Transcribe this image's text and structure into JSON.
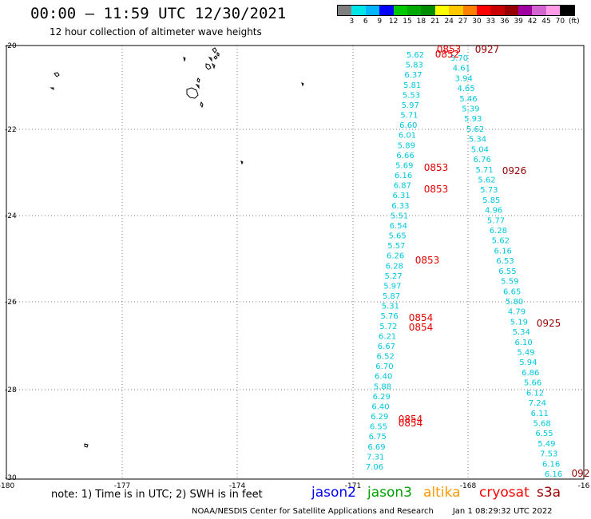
{
  "title": "00:00 – 11:59 UTC 12/30/2021",
  "subtitle": "12 hour collection of altimeter wave heights",
  "colorbar": {
    "labels": [
      "3",
      "6",
      "9",
      "12",
      "15",
      "18",
      "21",
      "24",
      "27",
      "30",
      "33",
      "36",
      "39",
      "42",
      "45",
      "70"
    ],
    "unit": "(ft)",
    "colors": [
      "#7f7f7f",
      "#00e6e6",
      "#00b4ff",
      "#0000ff",
      "#00c800",
      "#00aa00",
      "#008c00",
      "#ffff00",
      "#ffc800",
      "#ff7f00",
      "#ff0000",
      "#c80000",
      "#960000",
      "#a000a0",
      "#d264d2",
      "#ff9be6",
      "#000000"
    ]
  },
  "map": {
    "lon_range": [
      -180,
      -161
    ],
    "lat_range": [
      -30,
      -20
    ],
    "x_ticks": [
      "-180",
      "-177",
      "-174",
      "-171",
      "-168",
      "-16"
    ],
    "y_ticks": [
      "-20",
      "-22",
      "-24",
      "-26",
      "-28",
      "-30"
    ]
  },
  "colors": {
    "wave": "#00c8dc",
    "time": "#e60000",
    "time_old": "#960000"
  },
  "tracks": {
    "track_a": [
      "5.62",
      "5.83",
      "6.37",
      "5.81",
      "5.53",
      "5.97",
      "5.71",
      "6.60",
      "6.01",
      "5.89",
      "6.66",
      "5.69",
      "6.16",
      "6.87",
      "6.31",
      "6.33",
      "5.51",
      "6.54",
      "5.65",
      "5.57",
      "6.26",
      "6.28",
      "5.27",
      "5.97",
      "5.87",
      "5.31",
      "5.76",
      "5.72",
      "6.21",
      "6.67",
      "6.52",
      "6.70",
      "6.40",
      "5.88",
      "6.29",
      "6.40",
      "6.29",
      "6.55",
      "6.75",
      "6.69",
      "7.31",
      "7.06"
    ],
    "track_b": [
      "5.70",
      "4.61",
      "3.94",
      "4.65",
      "5.46",
      "5.39",
      "5.93",
      "5.62",
      "5.34",
      "5.04",
      "6.76",
      "5.71",
      "5.62",
      "5.73",
      "5.85",
      "4.96",
      "5.77",
      "6.28",
      "5.62",
      "6.16",
      "6.53",
      "6.55",
      "5.59",
      "6.65",
      "5.80",
      "4.79",
      "5.19",
      "5.34",
      "6.10",
      "5.49",
      "5.94",
      "6.86",
      "5.66",
      "6.12",
      "7.24",
      "6.11",
      "5.68",
      "6.55",
      "5.49",
      "7.53",
      "6.16",
      "6.16"
    ],
    "times_a": [
      "0853",
      "0852",
      "0853",
      "0853",
      "0853",
      "0854",
      "0854",
      "0854",
      "0854"
    ],
    "times_b": [
      "0927",
      "0926",
      "0925",
      "092"
    ]
  },
  "note": "note:  1) Time is in UTC;  2) SWH is in feet",
  "satellites": [
    {
      "name": "jason2",
      "color": "#0000ff"
    },
    {
      "name": "jason3",
      "color": "#00a000"
    },
    {
      "name": "altika",
      "color": "#ff9900"
    },
    {
      "name": "cryosat",
      "color": "#ff0000"
    },
    {
      "name": "s3a",
      "color": "#990000"
    }
  ],
  "footer": {
    "agency": "NOAA/NESDIS Center for Satellite Applications and Research",
    "timestamp": "Jan  1 08:29:32 UTC 2022"
  }
}
